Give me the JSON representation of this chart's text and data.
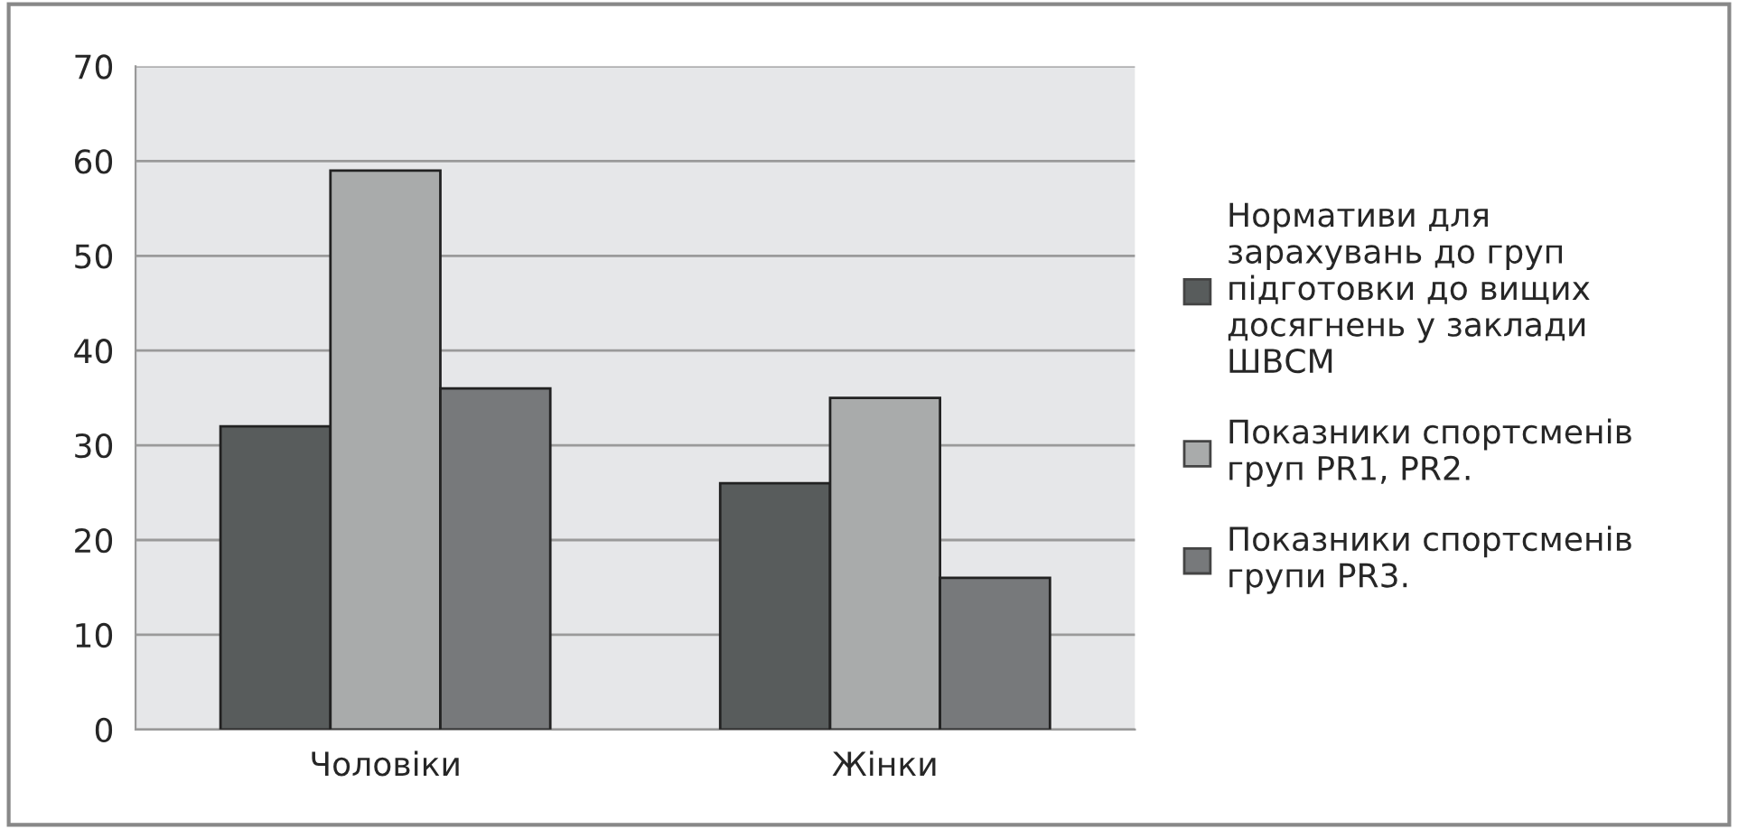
{
  "chart_data": {
    "type": "bar",
    "categories": [
      "Чоловіки",
      "Жінки"
    ],
    "series": [
      {
        "name": "Нормативи для\nзарахувань до груп\nпідготовки до вищих\nдосягнень у заклади\nШВСМ",
        "color": "#585c5c",
        "values": [
          32,
          26
        ]
      },
      {
        "name": "Показники спортсменів\nгруп PR1, PR2.",
        "color": "#a9abab",
        "values": [
          59,
          35
        ]
      },
      {
        "name": "Показники спортсменів\nгрупи PR3.",
        "color": "#77797b",
        "values": [
          36,
          16
        ]
      }
    ],
    "ylim": [
      0,
      70
    ],
    "yticks": [
      0,
      10,
      20,
      30,
      40,
      50,
      60,
      70
    ],
    "grid": "y",
    "legend": "right"
  }
}
